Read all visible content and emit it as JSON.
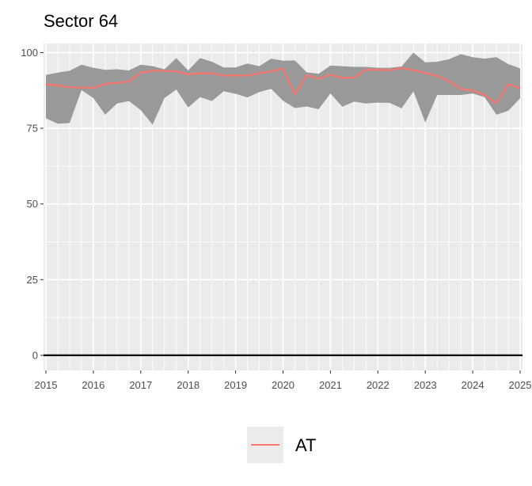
{
  "chart_data": {
    "type": "line",
    "title": "Sector 64",
    "xlabel": "",
    "ylabel": "",
    "xlim": [
      2014.95,
      2025.05
    ],
    "ylim": [
      -5,
      103
    ],
    "x_ticks": [
      2015,
      2016,
      2017,
      2018,
      2019,
      2020,
      2021,
      2022,
      2023,
      2024,
      2025
    ],
    "x_tick_labels": [
      "2015",
      "2016",
      "2017",
      "2018",
      "2019",
      "2020",
      "2021",
      "2022",
      "2023",
      "2024",
      "2025"
    ],
    "y_ticks": [
      0,
      25,
      50,
      75,
      100
    ],
    "y_tick_labels": [
      "0",
      "25",
      "50",
      "75",
      "100"
    ],
    "hline": 0,
    "grid": true,
    "legend_position": "bottom",
    "series": [
      {
        "name": "AT",
        "color": "#F8766D",
        "x": [
          2015.0,
          2015.25,
          2015.5,
          2015.75,
          2016.0,
          2016.25,
          2016.5,
          2016.75,
          2017.0,
          2017.25,
          2017.5,
          2017.75,
          2018.0,
          2018.25,
          2018.5,
          2018.75,
          2019.0,
          2019.25,
          2019.5,
          2019.75,
          2020.0,
          2020.25,
          2020.5,
          2020.75,
          2021.0,
          2021.25,
          2021.5,
          2021.75,
          2022.0,
          2022.25,
          2022.5,
          2022.75,
          2023.0,
          2023.25,
          2023.5,
          2023.75,
          2024.0,
          2024.25,
          2024.5,
          2024.75,
          2025.0
        ],
        "values": [
          89.5,
          89.2,
          88.5,
          88.5,
          88.3,
          89.7,
          90.0,
          90.4,
          93.4,
          94.0,
          94.0,
          93.8,
          92.8,
          93.2,
          93.2,
          92.4,
          92.5,
          92.4,
          93.2,
          93.8,
          94.7,
          86.2,
          92.5,
          91.4,
          92.7,
          91.6,
          91.8,
          94.3,
          94.4,
          94.2,
          94.9,
          94.2,
          93.3,
          92.3,
          90.5,
          88.0,
          87.5,
          86.0,
          83.3,
          89.5,
          88.2
        ],
        "band_lower": [
          78.3,
          76.5,
          76.8,
          87.6,
          85.0,
          79.5,
          83.2,
          84.0,
          81.0,
          76.2,
          85.0,
          87.8,
          81.9,
          85.3,
          84.0,
          87.2,
          86.4,
          85.2,
          87.0,
          88.0,
          84.1,
          81.7,
          82.2,
          81.3,
          86.5,
          82.1,
          83.8,
          83.2,
          83.5,
          83.4,
          81.6,
          87.2,
          76.9,
          86.0,
          86.0,
          86.0,
          86.5,
          85.3,
          79.5,
          80.8,
          84.9
        ],
        "band_upper": [
          92.6,
          93.4,
          94.0,
          96.0,
          95.0,
          94.3,
          94.5,
          94.1,
          96.0,
          95.5,
          94.5,
          98.2,
          94.1,
          98.2,
          97.0,
          95.1,
          95.1,
          96.4,
          95.5,
          98.0,
          97.3,
          97.4,
          93.5,
          93.0,
          95.7,
          95.5,
          95.3,
          95.3,
          95.0,
          95.0,
          95.4,
          100.0,
          96.8,
          97.0,
          97.8,
          99.5,
          98.5,
          98.0,
          98.5,
          96.2,
          94.8
        ]
      }
    ]
  }
}
